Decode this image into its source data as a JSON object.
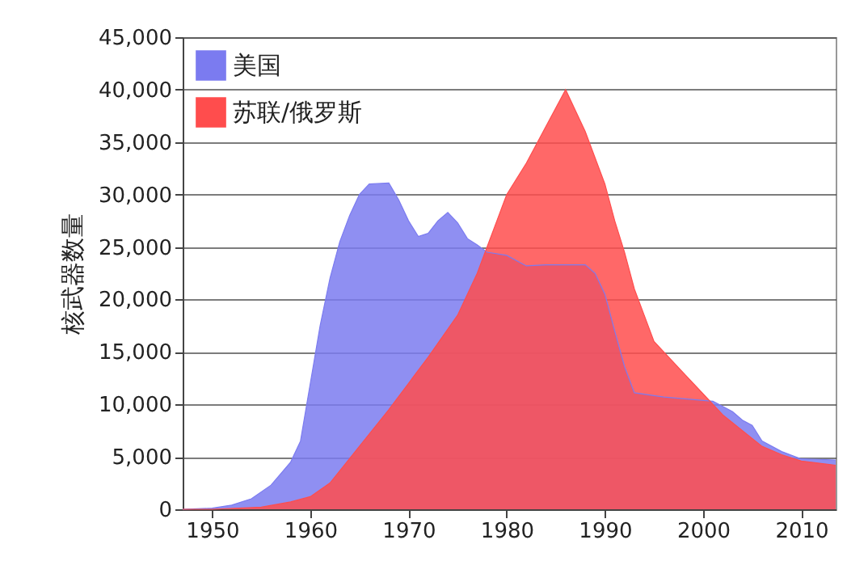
{
  "chart_data": {
    "type": "area",
    "ylabel": "核武器数量",
    "legend": "top left",
    "grid": "y",
    "xlim": [
      1947,
      2013.5
    ],
    "xticks": [
      1950,
      1960,
      1970,
      1980,
      1990,
      2000,
      2010
    ],
    "ylim": [
      0,
      45000
    ],
    "yticks": [
      {
        "value": 0,
        "label": "0"
      },
      {
        "value": 5000,
        "label": "5,000"
      },
      {
        "value": 10000,
        "label": "10,000"
      },
      {
        "value": 15000,
        "label": "15,000"
      },
      {
        "value": 20000,
        "label": "20,000"
      },
      {
        "value": 25000,
        "label": "25,000"
      },
      {
        "value": 30000,
        "label": "30,000"
      },
      {
        "value": 35000,
        "label": "35,000"
      },
      {
        "value": 40000,
        "label": "40,000"
      },
      {
        "value": 45000,
        "label": "45,000"
      }
    ],
    "series": [
      {
        "name": "美国",
        "color": "#7b7bf0",
        "x": [
          1947,
          1950,
          1952,
          1954,
          1956,
          1958,
          1959,
          1960,
          1961,
          1962,
          1963,
          1964,
          1965,
          1966,
          1968,
          1969,
          1970,
          1971,
          1972,
          1973,
          1974,
          1975,
          1976,
          1977,
          1978,
          1980,
          1982,
          1984,
          1988,
          1989,
          1990,
          1991,
          1992,
          1993,
          1996,
          2001,
          2003,
          2004,
          2005,
          2006,
          2008,
          2010,
          2013.5
        ],
        "values": [
          0,
          100,
          400,
          1000,
          2300,
          4500,
          6500,
          12000,
          17500,
          22000,
          25500,
          28000,
          30000,
          31000,
          31100,
          29500,
          27500,
          26000,
          26300,
          27500,
          28300,
          27300,
          25800,
          25200,
          24500,
          24200,
          23200,
          23300,
          23300,
          22500,
          20500,
          17000,
          13600,
          11100,
          10700,
          10300,
          9300,
          8500,
          8000,
          6500,
          5500,
          4800,
          4700
        ]
      },
      {
        "name": "苏联/俄罗斯",
        "color": "#ff4d4d",
        "x": [
          1947,
          1950,
          1955,
          1958,
          1960,
          1962,
          1965,
          1968,
          1970,
          1972,
          1975,
          1977,
          1978,
          1979,
          1980,
          1982,
          1984,
          1986,
          1988,
          1989,
          1990,
          1991,
          1992,
          1993,
          1994,
          1995,
          1996,
          1998,
          2000,
          2002,
          2004,
          2006,
          2008,
          2010,
          2013.5
        ],
        "values": [
          0,
          0,
          200,
          700,
          1200,
          2500,
          6000,
          9500,
          12000,
          14500,
          18500,
          22500,
          25000,
          27500,
          30000,
          33000,
          36500,
          40000,
          36000,
          33500,
          31000,
          27500,
          24500,
          21000,
          18500,
          16000,
          15000,
          13000,
          11000,
          9000,
          7500,
          6000,
          5200,
          4600,
          4200
        ]
      }
    ]
  }
}
